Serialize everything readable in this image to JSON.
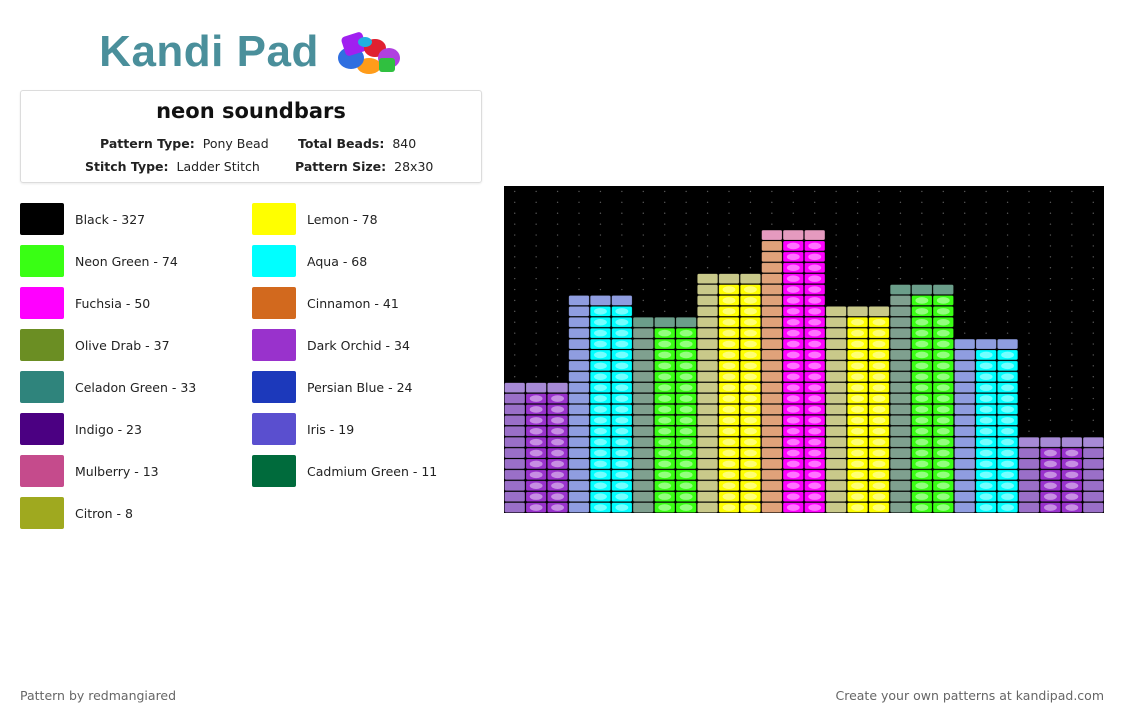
{
  "logo": {
    "text": "Kandi Pad",
    "text_color": "#4a8f9b",
    "icon": "beads-icon"
  },
  "title": "neon soundbars",
  "meta": {
    "pattern_type_label": "Pattern Type:",
    "pattern_type_value": "Pony Bead",
    "total_beads_label": "Total Beads:",
    "total_beads_value": "840",
    "stitch_type_label": "Stitch Type:",
    "stitch_type_value": "Ladder Stitch",
    "pattern_size_label": "Pattern Size:",
    "pattern_size_value": "28x30"
  },
  "legend": [
    {
      "label": "Black - 327",
      "color": "#000000"
    },
    {
      "label": "Lemon - 78",
      "color": "#ffff00"
    },
    {
      "label": "Neon Green - 74",
      "color": "#39ff14"
    },
    {
      "label": "Aqua - 68",
      "color": "#00ffff"
    },
    {
      "label": "Fuchsia - 50",
      "color": "#ff00ff"
    },
    {
      "label": "Cinnamon - 41",
      "color": "#d2691e"
    },
    {
      "label": "Olive Drab - 37",
      "color": "#6b8e23"
    },
    {
      "label": "Dark Orchid - 34",
      "color": "#9932cc"
    },
    {
      "label": "Celadon Green - 33",
      "color": "#2f847c"
    },
    {
      "label": "Persian Blue - 24",
      "color": "#1c39bb"
    },
    {
      "label": "Indigo - 23",
      "color": "#4b0082"
    },
    {
      "label": "Iris - 19",
      "color": "#5a4fcf"
    },
    {
      "label": "Mulberry - 13",
      "color": "#c54b8c"
    },
    {
      "label": "Cadmium Green - 11",
      "color": "#006b3c"
    },
    {
      "label": "Citron - 8",
      "color": "#9fa91f"
    }
  ],
  "pattern": {
    "background": "#000000",
    "bars": [
      {
        "rows": 12,
        "inner": "#9932cc",
        "edge": "#9a6fc8",
        "cap": "#a78ad6"
      },
      {
        "rows": 20,
        "inner": "#00ffff",
        "edge": "#8f9de0",
        "cap": "#8f9de0"
      },
      {
        "rows": 18,
        "inner": "#39ff14",
        "edge": "#7fa08f",
        "cap": "#6b9e8a"
      },
      {
        "rows": 22,
        "inner": "#ffff00",
        "edge": "#c9c98a",
        "cap": "#c9c98a"
      },
      {
        "rows": 26,
        "inner": "#ff00ff",
        "edge": "#e0a27a",
        "cap": "#e59abf"
      },
      {
        "rows": 19,
        "inner": "#ffff00",
        "edge": "#c9c98a",
        "cap": "#c9c98a"
      },
      {
        "rows": 21,
        "inner": "#39ff14",
        "edge": "#7fa08f",
        "cap": "#6b9e8a"
      },
      {
        "rows": 16,
        "inner": "#00ffff",
        "edge": "#8f9de0",
        "cap": "#8f9de0"
      },
      {
        "rows": 7,
        "inner": "#9932cc",
        "edge": "#9a6fc8",
        "cap": "#a78ad6"
      }
    ]
  },
  "footer": {
    "left": "Pattern by redmangiared",
    "right": "Create your own patterns at kandipad.com"
  }
}
